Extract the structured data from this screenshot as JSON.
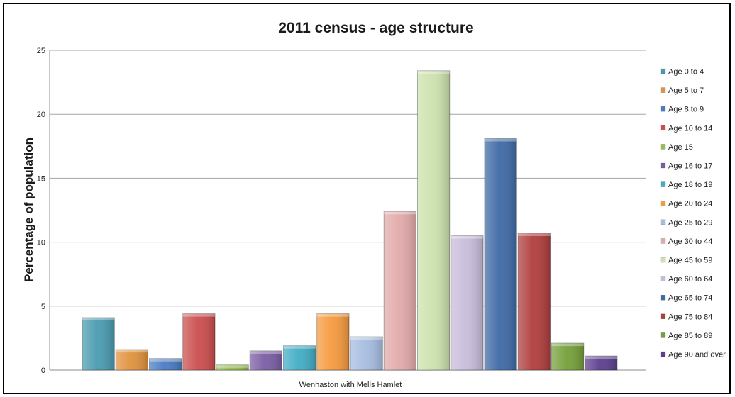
{
  "chart_data": {
    "type": "bar",
    "title": "2011 census  - age structure",
    "ylabel": "Percentage of population",
    "xlabel": "",
    "categories": [
      "Wenhaston with Mells Hamlet"
    ],
    "ylim": [
      0,
      25
    ],
    "yticks": [
      "0",
      "5",
      "10",
      "15",
      "20",
      "25"
    ],
    "grid": true,
    "legend_position": "right",
    "series": [
      {
        "name": "Age 0 to 4",
        "values": [
          4.1
        ],
        "color": "#4a9bb0"
      },
      {
        "name": "Age 5 to 7",
        "values": [
          1.6
        ],
        "color": "#e0923e"
      },
      {
        "name": "Age 8 to 9",
        "values": [
          0.9
        ],
        "color": "#4a7cc4"
      },
      {
        "name": "Age 10 to 14",
        "values": [
          4.4
        ],
        "color": "#cc4e4e"
      },
      {
        "name": "Age 15",
        "values": [
          0.4
        ],
        "color": "#96bd4e"
      },
      {
        "name": "Age 16 to 17",
        "values": [
          1.5
        ],
        "color": "#7b5da3"
      },
      {
        "name": "Age 18 to 19",
        "values": [
          1.9
        ],
        "color": "#41adc6"
      },
      {
        "name": "Age 20 to 24",
        "values": [
          4.4
        ],
        "color": "#f59a3e"
      },
      {
        "name": "Age 25 to 29",
        "values": [
          2.6
        ],
        "color": "#a6bde0"
      },
      {
        "name": "Age 30 to 44",
        "values": [
          12.4
        ],
        "color": "#e2aaaa"
      },
      {
        "name": "Age 45 to 59",
        "values": [
          23.4
        ],
        "color": "#cde2ad"
      },
      {
        "name": "Age 60 to 64",
        "values": [
          10.5
        ],
        "color": "#c8bcdb"
      },
      {
        "name": "Age 65 to 74",
        "values": [
          18.1
        ],
        "color": "#3f6aa6"
      },
      {
        "name": "Age 75 to 84",
        "values": [
          10.7
        ],
        "color": "#b03e3e"
      },
      {
        "name": "Age 85 to 89",
        "values": [
          2.1
        ],
        "color": "#76a03a"
      },
      {
        "name": "Age 90 and over",
        "values": [
          1.1
        ],
        "color": "#5b3f8e"
      }
    ]
  }
}
